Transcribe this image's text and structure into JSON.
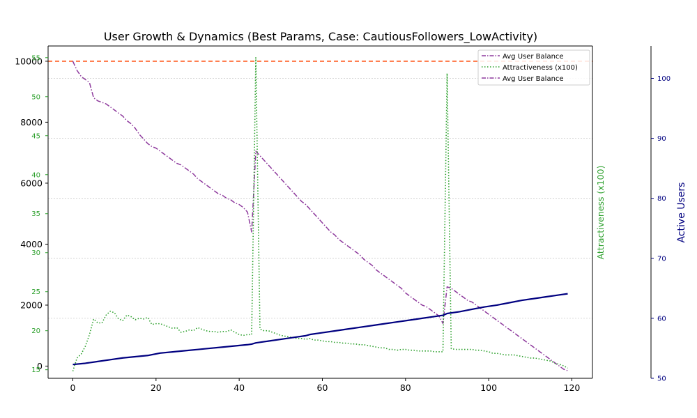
{
  "chart_data": {
    "type": "line",
    "title": "User Growth & Dynamics (Best Params, Case: CautiousFollowers_LowActivity)",
    "xlabel": "",
    "x_ticks": [
      0,
      20,
      40,
      60,
      80,
      100,
      120
    ],
    "xlim": [
      -5.95,
      124.95
    ],
    "axes": {
      "balance": {
        "ylabel": "",
        "ylim": [
          -400,
          10500
        ],
        "ticks": [
          0,
          2000,
          4000,
          6000,
          8000,
          10000
        ],
        "color": "#000000"
      },
      "attractiveness": {
        "ylabel": "Attractiveness (x100)",
        "ylim": [
          13.9,
          56.5
        ],
        "ticks": [
          15,
          20,
          25,
          30,
          35,
          40,
          45,
          50,
          55
        ],
        "color": "#2ca02c"
      },
      "users": {
        "ylabel": "Active Users",
        "ylim": [
          50,
          105.4
        ],
        "ticks": [
          50,
          60,
          70,
          80,
          90,
          100
        ],
        "color": "#000080"
      }
    },
    "reference_line": {
      "axis": "balance",
      "y": 10000,
      "color": "#ff4500",
      "style": "dashed"
    },
    "legend": {
      "placement": "top-right",
      "entries": [
        "Avg User Balance",
        "Attractiveness (x100)",
        "Avg User Balance"
      ]
    },
    "grid": "horizontal dotted (right axis)",
    "series": [
      {
        "key": "balance",
        "axis": "balance",
        "color": "#8e3a9d",
        "style": "dashdot",
        "points": [
          [
            0,
            10000
          ],
          [
            1,
            9700
          ],
          [
            2,
            9500
          ],
          [
            3,
            9400
          ],
          [
            4,
            9300
          ],
          [
            5,
            8800
          ],
          [
            6,
            8700
          ],
          [
            7,
            8650
          ],
          [
            8,
            8600
          ],
          [
            9,
            8500
          ],
          [
            10,
            8400
          ],
          [
            11,
            8300
          ],
          [
            12,
            8200
          ],
          [
            13,
            8050
          ],
          [
            14,
            7950
          ],
          [
            15,
            7800
          ],
          [
            16,
            7600
          ],
          [
            17,
            7450
          ],
          [
            18,
            7300
          ],
          [
            19,
            7200
          ],
          [
            20,
            7150
          ],
          [
            21,
            7050
          ],
          [
            22,
            6950
          ],
          [
            23,
            6850
          ],
          [
            24,
            6750
          ],
          [
            25,
            6650
          ],
          [
            26,
            6600
          ],
          [
            27,
            6500
          ],
          [
            28,
            6400
          ],
          [
            29,
            6300
          ],
          [
            30,
            6150
          ],
          [
            31,
            6050
          ],
          [
            32,
            5950
          ],
          [
            33,
            5850
          ],
          [
            34,
            5750
          ],
          [
            35,
            5650
          ],
          [
            36,
            5600
          ],
          [
            37,
            5500
          ],
          [
            38,
            5450
          ],
          [
            39,
            5350
          ],
          [
            40,
            5300
          ],
          [
            41,
            5200
          ],
          [
            42,
            5050
          ],
          [
            43,
            4400
          ],
          [
            44,
            7050
          ],
          [
            45,
            6900
          ],
          [
            46,
            6750
          ],
          [
            47,
            6600
          ],
          [
            48,
            6450
          ],
          [
            49,
            6300
          ],
          [
            50,
            6150
          ],
          [
            51,
            6000
          ],
          [
            52,
            5850
          ],
          [
            53,
            5700
          ],
          [
            54,
            5550
          ],
          [
            55,
            5400
          ],
          [
            56,
            5300
          ],
          [
            57,
            5150
          ],
          [
            58,
            5000
          ],
          [
            59,
            4850
          ],
          [
            60,
            4700
          ],
          [
            61,
            4550
          ],
          [
            62,
            4400
          ],
          [
            63,
            4300
          ],
          [
            64,
            4150
          ],
          [
            65,
            4050
          ],
          [
            66,
            3950
          ],
          [
            67,
            3850
          ],
          [
            68,
            3750
          ],
          [
            69,
            3650
          ],
          [
            70,
            3500
          ],
          [
            71,
            3400
          ],
          [
            72,
            3300
          ],
          [
            73,
            3150
          ],
          [
            74,
            3050
          ],
          [
            75,
            2950
          ],
          [
            76,
            2850
          ],
          [
            77,
            2750
          ],
          [
            78,
            2650
          ],
          [
            79,
            2550
          ],
          [
            80,
            2400
          ],
          [
            81,
            2300
          ],
          [
            82,
            2200
          ],
          [
            83,
            2100
          ],
          [
            84,
            2000
          ],
          [
            85,
            1950
          ],
          [
            86,
            1850
          ],
          [
            87,
            1750
          ],
          [
            88,
            1650
          ],
          [
            89,
            1400
          ],
          [
            90,
            2600
          ],
          [
            91,
            2550
          ],
          [
            92,
            2450
          ],
          [
            93,
            2350
          ],
          [
            94,
            2250
          ],
          [
            95,
            2150
          ],
          [
            96,
            2100
          ],
          [
            97,
            2000
          ],
          [
            98,
            1900
          ],
          [
            99,
            1800
          ],
          [
            100,
            1700
          ],
          [
            101,
            1600
          ],
          [
            102,
            1500
          ],
          [
            103,
            1400
          ],
          [
            104,
            1300
          ],
          [
            105,
            1200
          ],
          [
            106,
            1100
          ],
          [
            107,
            1000
          ],
          [
            108,
            900
          ],
          [
            109,
            800
          ],
          [
            110,
            700
          ],
          [
            111,
            600
          ],
          [
            112,
            500
          ],
          [
            113,
            400
          ],
          [
            114,
            300
          ],
          [
            115,
            200
          ],
          [
            116,
            100
          ],
          [
            117,
            0
          ],
          [
            118,
            -100
          ],
          [
            119,
            -150
          ]
        ]
      },
      {
        "key": "attractiveness",
        "axis": "attractiveness",
        "color": "#2ca02c",
        "style": "dotted",
        "points": [
          [
            0,
            14.8
          ],
          [
            1,
            16.5
          ],
          [
            2,
            17.0
          ],
          [
            3,
            18.0
          ],
          [
            4,
            19.5
          ],
          [
            5,
            21.5
          ],
          [
            6,
            21.0
          ],
          [
            7,
            21.0
          ],
          [
            8,
            22.0
          ],
          [
            9,
            22.5
          ],
          [
            10,
            22.3
          ],
          [
            11,
            21.5
          ],
          [
            12,
            21.3
          ],
          [
            13,
            22.0
          ],
          [
            14,
            21.8
          ],
          [
            15,
            21.4
          ],
          [
            16,
            21.6
          ],
          [
            17,
            21.5
          ],
          [
            18,
            21.7
          ],
          [
            19,
            20.8
          ],
          [
            20,
            20.9
          ],
          [
            21,
            20.9
          ],
          [
            22,
            20.7
          ],
          [
            23,
            20.5
          ],
          [
            24,
            20.3
          ],
          [
            25,
            20.4
          ],
          [
            26,
            19.8
          ],
          [
            27,
            19.9
          ],
          [
            28,
            20.1
          ],
          [
            29,
            20.0
          ],
          [
            30,
            20.4
          ],
          [
            31,
            20.2
          ],
          [
            32,
            20.0
          ],
          [
            33,
            19.9
          ],
          [
            34,
            19.9
          ],
          [
            35,
            19.8
          ],
          [
            36,
            19.9
          ],
          [
            37,
            19.9
          ],
          [
            38,
            20.1
          ],
          [
            39,
            19.8
          ],
          [
            40,
            19.5
          ],
          [
            41,
            19.4
          ],
          [
            42,
            19.5
          ],
          [
            43,
            19.5
          ],
          [
            44,
            55.0
          ],
          [
            45,
            20.2
          ],
          [
            46,
            20.0
          ],
          [
            47,
            20.0
          ],
          [
            48,
            19.8
          ],
          [
            49,
            19.6
          ],
          [
            50,
            19.4
          ],
          [
            51,
            19.3
          ],
          [
            52,
            19.2
          ],
          [
            53,
            19.1
          ],
          [
            54,
            19.0
          ],
          [
            55,
            19.0
          ],
          [
            56,
            18.9
          ],
          [
            57,
            19.0
          ],
          [
            58,
            18.8
          ],
          [
            59,
            18.8
          ],
          [
            60,
            18.7
          ],
          [
            61,
            18.6
          ],
          [
            62,
            18.6
          ],
          [
            63,
            18.5
          ],
          [
            64,
            18.5
          ],
          [
            65,
            18.4
          ],
          [
            66,
            18.4
          ],
          [
            67,
            18.3
          ],
          [
            68,
            18.3
          ],
          [
            69,
            18.2
          ],
          [
            70,
            18.2
          ],
          [
            71,
            18.1
          ],
          [
            72,
            18.0
          ],
          [
            73,
            17.9
          ],
          [
            74,
            17.8
          ],
          [
            75,
            17.8
          ],
          [
            76,
            17.6
          ],
          [
            77,
            17.6
          ],
          [
            78,
            17.5
          ],
          [
            79,
            17.6
          ],
          [
            80,
            17.6
          ],
          [
            81,
            17.5
          ],
          [
            82,
            17.5
          ],
          [
            83,
            17.4
          ],
          [
            84,
            17.4
          ],
          [
            85,
            17.4
          ],
          [
            86,
            17.4
          ],
          [
            87,
            17.3
          ],
          [
            88,
            17.3
          ],
          [
            89,
            17.3
          ],
          [
            90,
            53.0
          ],
          [
            91,
            17.7
          ],
          [
            92,
            17.6
          ],
          [
            93,
            17.6
          ],
          [
            94,
            17.6
          ],
          [
            95,
            17.6
          ],
          [
            96,
            17.6
          ],
          [
            97,
            17.5
          ],
          [
            98,
            17.5
          ],
          [
            99,
            17.4
          ],
          [
            100,
            17.3
          ],
          [
            101,
            17.1
          ],
          [
            102,
            17.1
          ],
          [
            103,
            17.0
          ],
          [
            104,
            16.9
          ],
          [
            105,
            16.9
          ],
          [
            106,
            16.9
          ],
          [
            107,
            16.8
          ],
          [
            108,
            16.7
          ],
          [
            109,
            16.6
          ],
          [
            110,
            16.5
          ],
          [
            111,
            16.5
          ],
          [
            112,
            16.4
          ],
          [
            113,
            16.3
          ],
          [
            114,
            16.2
          ],
          [
            115,
            16.1
          ],
          [
            116,
            15.8
          ],
          [
            117,
            15.7
          ],
          [
            118,
            15.5
          ],
          [
            119,
            15.2
          ]
        ]
      },
      {
        "key": "users",
        "axis": "users",
        "color": "#000080",
        "style": "solid",
        "points": [
          [
            0,
            52.3
          ],
          [
            3,
            52.5
          ],
          [
            6,
            52.8
          ],
          [
            9,
            53.1
          ],
          [
            12,
            53.4
          ],
          [
            15,
            53.6
          ],
          [
            18,
            53.8
          ],
          [
            21,
            54.2
          ],
          [
            24,
            54.4
          ],
          [
            27,
            54.6
          ],
          [
            30,
            54.8
          ],
          [
            33,
            55.0
          ],
          [
            36,
            55.2
          ],
          [
            39,
            55.4
          ],
          [
            42,
            55.6
          ],
          [
            43,
            55.7
          ],
          [
            44,
            55.9
          ],
          [
            47,
            56.2
          ],
          [
            50,
            56.5
          ],
          [
            53,
            56.8
          ],
          [
            56,
            57.1
          ],
          [
            57,
            57.3
          ],
          [
            60,
            57.6
          ],
          [
            63,
            57.9
          ],
          [
            66,
            58.2
          ],
          [
            69,
            58.5
          ],
          [
            72,
            58.8
          ],
          [
            75,
            59.1
          ],
          [
            78,
            59.4
          ],
          [
            81,
            59.7
          ],
          [
            84,
            60.0
          ],
          [
            87,
            60.3
          ],
          [
            89,
            60.5
          ],
          [
            90,
            60.8
          ],
          [
            93,
            61.1
          ],
          [
            96,
            61.5
          ],
          [
            99,
            61.9
          ],
          [
            102,
            62.2
          ],
          [
            105,
            62.6
          ],
          [
            108,
            63.0
          ],
          [
            111,
            63.3
          ],
          [
            114,
            63.6
          ],
          [
            117,
            63.9
          ],
          [
            119,
            64.1
          ]
        ]
      }
    ]
  }
}
